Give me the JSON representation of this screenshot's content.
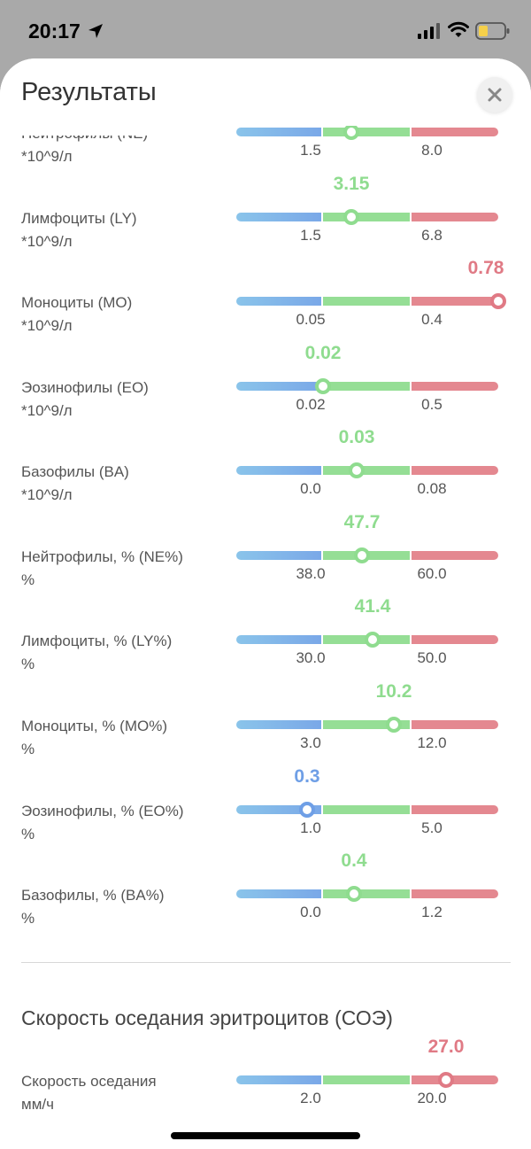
{
  "status_bar": {
    "time": "20:17"
  },
  "sheet": {
    "title": "Результаты"
  },
  "colors": {
    "low": "#6f9fe6",
    "normal": "#8fdc8f",
    "high": "#e07a85"
  },
  "results": [
    {
      "name": "Нейтрофилы (NE)",
      "unit": "*10^9/л",
      "value": "",
      "low": "1.5",
      "high": "8.0",
      "position": 0.44,
      "status": "normal"
    },
    {
      "name": "Лимфоциты (LY)",
      "unit": "*10^9/л",
      "value": "3.15",
      "low": "1.5",
      "high": "6.8",
      "position": 0.44,
      "status": "normal"
    },
    {
      "name": "Моноциты (MO)",
      "unit": "*10^9/л",
      "value": "0.78",
      "low": "0.05",
      "high": "0.4",
      "position": 1.0,
      "status": "high"
    },
    {
      "name": "Эозинофилы (EO)",
      "unit": "*10^9/л",
      "value": "0.02",
      "low": "0.02",
      "high": "0.5",
      "position": 0.33,
      "status": "normal"
    },
    {
      "name": "Базофилы (BA)",
      "unit": "*10^9/л",
      "value": "0.03",
      "low": "0.0",
      "high": "0.08",
      "position": 0.46,
      "status": "normal"
    },
    {
      "name": "Нейтрофилы, % (NE%)",
      "unit": "%",
      "value": "47.7",
      "low": "38.0",
      "high": "60.0",
      "position": 0.48,
      "status": "normal"
    },
    {
      "name": "Лимфоциты, % (LY%)",
      "unit": "%",
      "value": "41.4",
      "low": "30.0",
      "high": "50.0",
      "position": 0.52,
      "status": "normal"
    },
    {
      "name": "Моноциты, % (MO%)",
      "unit": "%",
      "value": "10.2",
      "low": "3.0",
      "high": "12.0",
      "position": 0.6,
      "status": "normal"
    },
    {
      "name": "Эозинофилы, % (EO%)",
      "unit": "%",
      "value": "0.3",
      "low": "1.0",
      "high": "5.0",
      "position": 0.27,
      "status": "low"
    },
    {
      "name": "Базофилы, % (BA%)",
      "unit": "%",
      "value": "0.4",
      "low": "0.0",
      "high": "1.2",
      "position": 0.45,
      "status": "normal"
    }
  ],
  "esr_section": {
    "title": "Скорость оседания эритроцитов (СОЭ)",
    "item": {
      "name": "Скорость оседания",
      "unit": "мм/ч",
      "value": "27.0",
      "low": "2.0",
      "high": "20.0",
      "position": 0.8,
      "status": "high"
    }
  }
}
